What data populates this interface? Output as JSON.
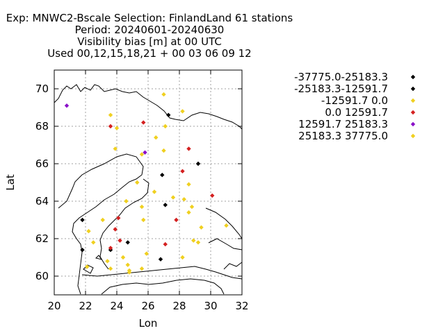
{
  "chart_data": {
    "type": "scatter",
    "title_lines": [
      "Exp: MNWC2-Bscale   Selection: FinlandLand     61 stations",
      "Period: 20240601-20240630",
      "Visibility bias [m] at  00 UTC",
      "Used 00,12,15,18,21 + 00 03 06 09 12"
    ],
    "xlabel": "Lon",
    "ylabel": "Lat",
    "xlim": [
      20,
      32
    ],
    "ylim": [
      59,
      71
    ],
    "xticks": [
      20,
      22,
      24,
      26,
      28,
      30,
      32
    ],
    "yticks": [
      60,
      62,
      64,
      66,
      68,
      70
    ],
    "grid": true,
    "legend_position": "right",
    "series": [
      {
        "name": "-37775.0-25183.3",
        "color": "#000000",
        "points": []
      },
      {
        "name": "-25183.3-12591.7",
        "color": "#000000",
        "points": [
          [
            27.3,
            68.6
          ],
          [
            29.2,
            66.0
          ],
          [
            26.9,
            65.4
          ],
          [
            27.1,
            63.8
          ],
          [
            21.8,
            63.0
          ],
          [
            21.8,
            61.4
          ],
          [
            23.6,
            61.4
          ],
          [
            24.7,
            61.8
          ],
          [
            26.8,
            60.9
          ]
        ]
      },
      {
        "name": "-12591.7 0.0",
        "color": "#f0d020",
        "points": [
          [
            27.0,
            69.7
          ],
          [
            28.2,
            68.8
          ],
          [
            23.6,
            68.6
          ],
          [
            27.1,
            68.0
          ],
          [
            24.0,
            67.9
          ],
          [
            26.5,
            67.4
          ],
          [
            23.9,
            66.8
          ],
          [
            27.0,
            66.7
          ],
          [
            25.6,
            66.5
          ],
          [
            25.3,
            65.0
          ],
          [
            28.6,
            64.9
          ],
          [
            26.4,
            64.5
          ],
          [
            27.6,
            64.2
          ],
          [
            28.3,
            64.1
          ],
          [
            24.6,
            64.0
          ],
          [
            25.6,
            63.7
          ],
          [
            28.8,
            63.7
          ],
          [
            28.6,
            63.4
          ],
          [
            23.1,
            63.0
          ],
          [
            25.7,
            63.0
          ],
          [
            31.0,
            62.7
          ],
          [
            29.4,
            62.6
          ],
          [
            22.2,
            62.4
          ],
          [
            22.5,
            61.8
          ],
          [
            28.9,
            61.9
          ],
          [
            29.2,
            61.8
          ],
          [
            25.9,
            61.2
          ],
          [
            24.4,
            61.0
          ],
          [
            28.2,
            61.0
          ],
          [
            23.4,
            60.8
          ],
          [
            24.7,
            60.6
          ],
          [
            22.1,
            60.5
          ],
          [
            23.6,
            60.4
          ],
          [
            24.8,
            60.2
          ],
          [
            25.6,
            60.4
          ],
          [
            24.8,
            60.3
          ]
        ]
      },
      {
        "name": "0.0 12591.7",
        "color": "#d42020",
        "points": [
          [
            25.7,
            68.2
          ],
          [
            23.6,
            68.0
          ],
          [
            28.6,
            66.8
          ],
          [
            28.2,
            65.6
          ],
          [
            30.1,
            64.3
          ],
          [
            24.1,
            63.1
          ],
          [
            27.8,
            63.0
          ],
          [
            23.9,
            62.5
          ],
          [
            24.2,
            61.9
          ],
          [
            27.1,
            61.7
          ],
          [
            23.6,
            61.5
          ]
        ]
      },
      {
        "name": "12591.7 25183.3",
        "color": "#8a10c8",
        "points": [
          [
            20.8,
            69.1
          ],
          [
            25.8,
            66.6
          ]
        ]
      },
      {
        "name": "25183.3 37775.0",
        "color": "#f0d020",
        "points": []
      }
    ]
  }
}
